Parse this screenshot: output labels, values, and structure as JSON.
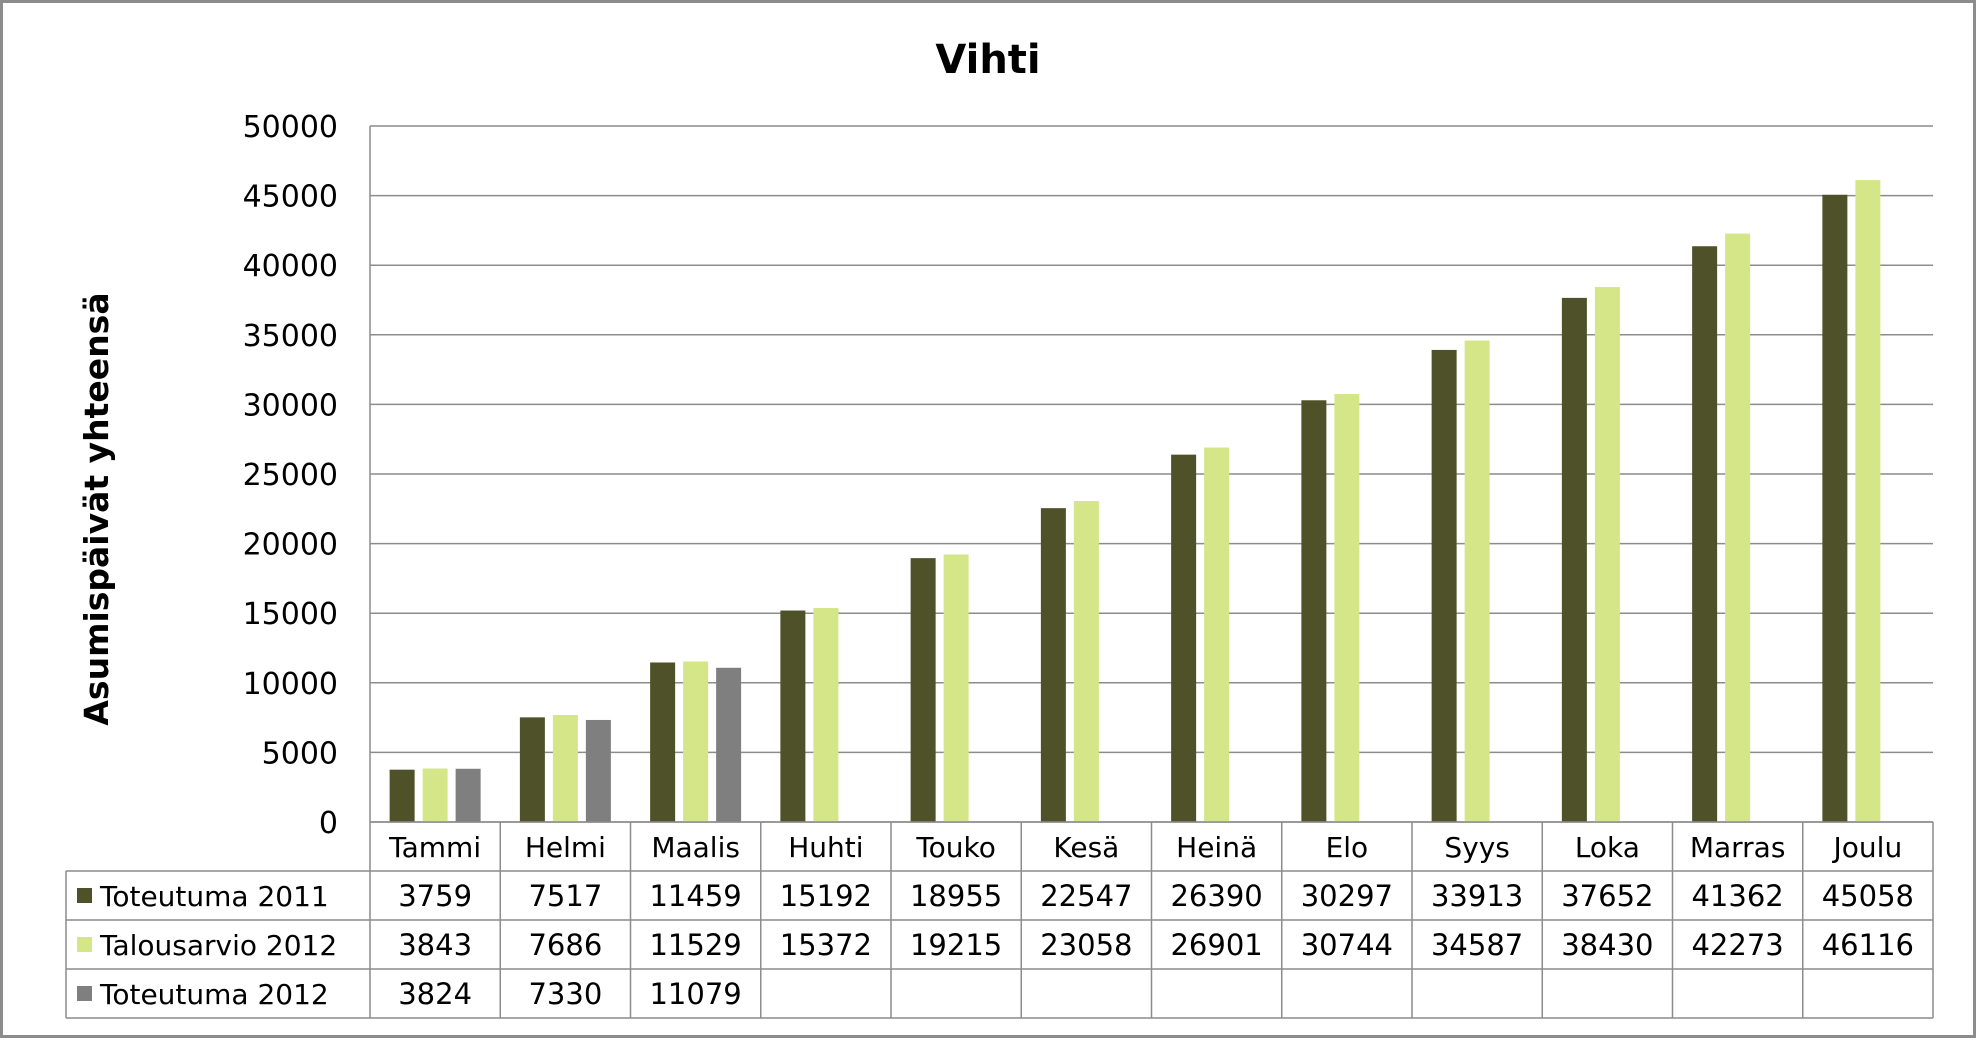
{
  "chart_data": {
    "type": "bar",
    "title": "Vihti",
    "xlabel": "",
    "ylabel": "Asumispäivät yhteensä",
    "ylim": [
      0,
      50000
    ],
    "yticks": [
      0,
      5000,
      10000,
      15000,
      20000,
      25000,
      30000,
      35000,
      40000,
      45000,
      50000
    ],
    "grid": true,
    "legend": "data-table",
    "categories": [
      "Tammi",
      "Helmi",
      "Maalis",
      "Huhti",
      "Touko",
      "Kesä",
      "Heinä",
      "Elo",
      "Syys",
      "Loka",
      "Marras",
      "Joulu"
    ],
    "series": [
      {
        "name": "Toteutuma 2011",
        "color": "#4f5228",
        "values": [
          3759,
          7517,
          11459,
          15192,
          18955,
          22547,
          26390,
          30297,
          33913,
          37652,
          41362,
          45058
        ]
      },
      {
        "name": "Talousarvio 2012",
        "color": "#d4e687",
        "values": [
          3843,
          7686,
          11529,
          15372,
          19215,
          23058,
          26901,
          30744,
          34587,
          38430,
          42273,
          46116
        ]
      },
      {
        "name": "Toteutuma 2012",
        "color": "#7f7f7f",
        "values": [
          3824,
          7330,
          11079,
          null,
          null,
          null,
          null,
          null,
          null,
          null,
          null,
          null
        ]
      }
    ]
  }
}
